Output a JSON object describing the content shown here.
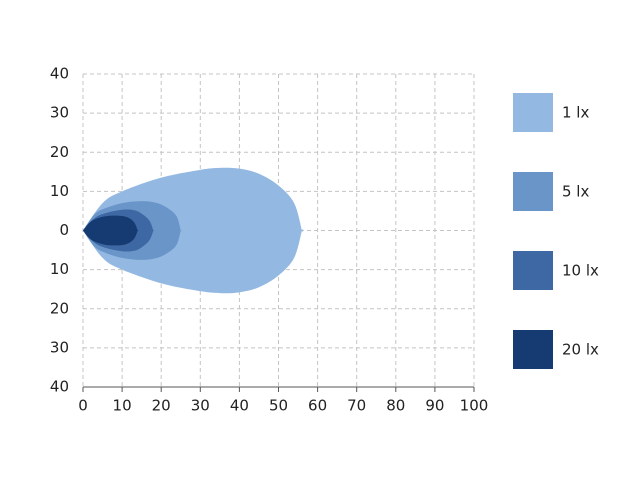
{
  "chart_data": {
    "type": "area",
    "series": [
      {
        "name": "1 lx",
        "color": "#93b9e3",
        "x": [
          0,
          5,
          10,
          20,
          30,
          35,
          40,
          45,
          50,
          54,
          56
        ],
        "values": [
          0,
          7,
          10,
          13.5,
          15.5,
          16,
          15.8,
          14.5,
          11.5,
          7,
          0
        ]
      },
      {
        "name": "5 lx",
        "color": "#6a95c8",
        "x": [
          0,
          3,
          6,
          10,
          15,
          19,
          22,
          24,
          25
        ],
        "values": [
          0,
          4.2,
          5.8,
          7,
          7.5,
          7,
          5.5,
          3.5,
          0
        ]
      },
      {
        "name": "10 lx",
        "color": "#3e68a3",
        "x": [
          0,
          3,
          6,
          10,
          13,
          15,
          17,
          18
        ],
        "values": [
          0,
          3.2,
          4.5,
          5.3,
          5.2,
          4.3,
          2.5,
          0
        ]
      },
      {
        "name": "20 lx",
        "color": "#163b72",
        "x": [
          0,
          2,
          5,
          8,
          11,
          13,
          14
        ],
        "values": [
          0,
          2.3,
          3.5,
          3.8,
          3.5,
          2.2,
          0
        ]
      }
    ],
    "xlim": [
      0,
      100
    ],
    "xticks": [
      0,
      10,
      20,
      30,
      40,
      50,
      60,
      70,
      80,
      90,
      100
    ],
    "ylim": [
      -40,
      40
    ],
    "yticks": [
      {
        "value": 40,
        "label": "40"
      },
      {
        "value": 30,
        "label": "30"
      },
      {
        "value": 20,
        "label": "20"
      },
      {
        "value": 10,
        "label": "10"
      },
      {
        "value": 0,
        "label": "0"
      },
      {
        "value": -10,
        "label": "10"
      },
      {
        "value": -20,
        "label": "20"
      },
      {
        "value": -30,
        "label": "30"
      },
      {
        "value": -40,
        "label": "40"
      }
    ],
    "grid": true,
    "legend": "right"
  }
}
